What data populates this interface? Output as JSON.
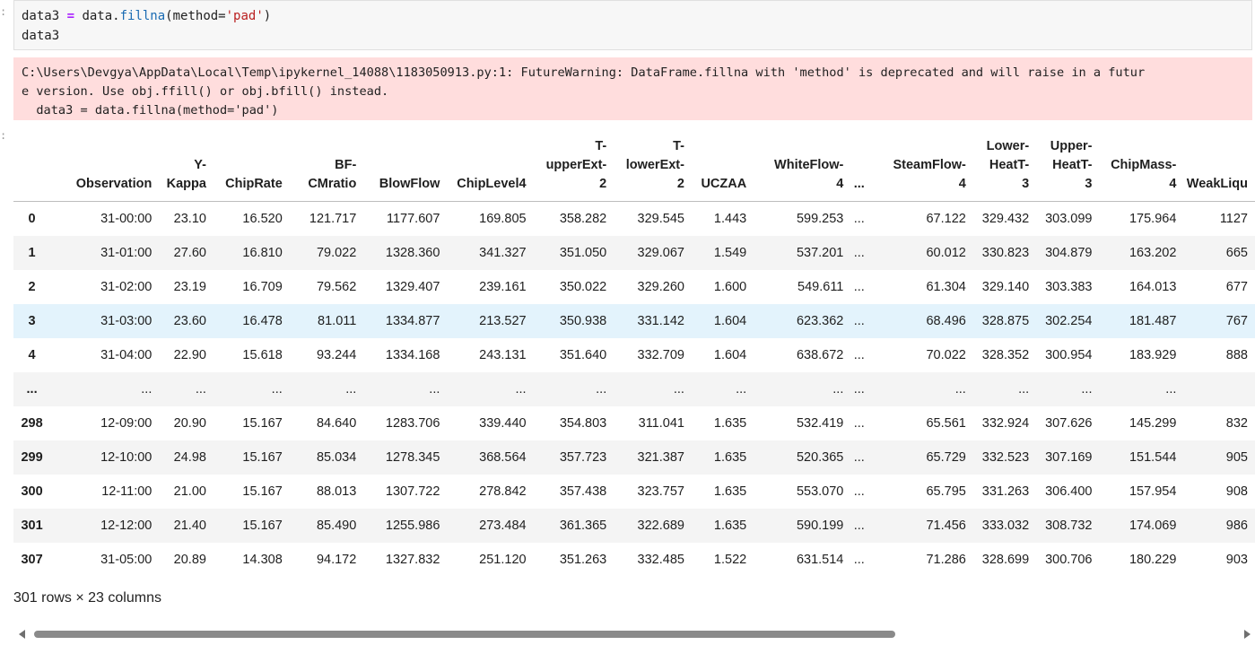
{
  "prompts": {
    "code": ":",
    "output": ":"
  },
  "code": {
    "line1": {
      "var": "data3 ",
      "op": "=",
      "obj": " data.",
      "fn": "fillna",
      "arg_open": "(method=",
      "str": "'pad'",
      "close": ")"
    },
    "line2": "data3"
  },
  "stderr": {
    "line1": "C:\\Users\\Devgya\\AppData\\Local\\Temp\\ipykernel_14088\\1183050913.py:1: FutureWarning: DataFrame.fillna with 'method' is deprecated and will raise in a futur",
    "line2": "e version. Use obj.ffill() or obj.bfill() instead.",
    "line3": "  data3 = data.fillna(method='pad')"
  },
  "table": {
    "columns": [
      {
        "label": "Observation",
        "w": 0
      },
      {
        "label": "Y-\nKappa"
      },
      {
        "label": "ChipRate"
      },
      {
        "label": "BF-\nCMratio"
      },
      {
        "label": "BlowFlow"
      },
      {
        "label": "ChipLevel4"
      },
      {
        "label": "T-\nupperExt-\n2"
      },
      {
        "label": "T-\nlowerExt-\n2"
      },
      {
        "label": "UCZAA"
      },
      {
        "label": "WhiteFlow-\n4"
      },
      {
        "label": "..."
      },
      {
        "label": "SteamFlow-\n4"
      },
      {
        "label": "Lower-\nHeatT-\n3"
      },
      {
        "label": "Upper-\nHeatT-\n3"
      },
      {
        "label": "ChipMass-\n4"
      },
      {
        "label": "WeakLiqu"
      }
    ],
    "rows": [
      {
        "index": "0",
        "cells": [
          "31-00:00",
          "23.10",
          "16.520",
          "121.717",
          "1177.607",
          "169.805",
          "358.282",
          "329.545",
          "1.443",
          "599.253",
          "...",
          "67.122",
          "329.432",
          "303.099",
          "175.964",
          "1127"
        ]
      },
      {
        "index": "1",
        "cells": [
          "31-01:00",
          "27.60",
          "16.810",
          "79.022",
          "1328.360",
          "341.327",
          "351.050",
          "329.067",
          "1.549",
          "537.201",
          "...",
          "60.012",
          "330.823",
          "304.879",
          "163.202",
          "665"
        ]
      },
      {
        "index": "2",
        "cells": [
          "31-02:00",
          "23.19",
          "16.709",
          "79.562",
          "1329.407",
          "239.161",
          "350.022",
          "329.260",
          "1.600",
          "549.611",
          "...",
          "61.304",
          "329.140",
          "303.383",
          "164.013",
          "677"
        ]
      },
      {
        "index": "3",
        "cells": [
          "31-03:00",
          "23.60",
          "16.478",
          "81.011",
          "1334.877",
          "213.527",
          "350.938",
          "331.142",
          "1.604",
          "623.362",
          "...",
          "68.496",
          "328.875",
          "302.254",
          "181.487",
          "767"
        ]
      },
      {
        "index": "4",
        "cells": [
          "31-04:00",
          "22.90",
          "15.618",
          "93.244",
          "1334.168",
          "243.131",
          "351.640",
          "332.709",
          "1.604",
          "638.672",
          "...",
          "70.022",
          "328.352",
          "300.954",
          "183.929",
          "888"
        ]
      },
      {
        "index": "...",
        "cells": [
          "...",
          "...",
          "...",
          "...",
          "...",
          "...",
          "...",
          "...",
          "...",
          "...",
          "...",
          "...",
          "...",
          "...",
          "...",
          ""
        ]
      },
      {
        "index": "298",
        "cells": [
          "12-09:00",
          "20.90",
          "15.167",
          "84.640",
          "1283.706",
          "339.440",
          "354.803",
          "311.041",
          "1.635",
          "532.419",
          "...",
          "65.561",
          "332.924",
          "307.626",
          "145.299",
          "832"
        ]
      },
      {
        "index": "299",
        "cells": [
          "12-10:00",
          "24.98",
          "15.167",
          "85.034",
          "1278.345",
          "368.564",
          "357.723",
          "321.387",
          "1.635",
          "520.365",
          "...",
          "65.729",
          "332.523",
          "307.169",
          "151.544",
          "905"
        ]
      },
      {
        "index": "300",
        "cells": [
          "12-11:00",
          "21.00",
          "15.167",
          "88.013",
          "1307.722",
          "278.842",
          "357.438",
          "323.757",
          "1.635",
          "553.070",
          "...",
          "65.795",
          "331.263",
          "306.400",
          "157.954",
          "908"
        ]
      },
      {
        "index": "301",
        "cells": [
          "12-12:00",
          "21.40",
          "15.167",
          "85.490",
          "1255.986",
          "273.484",
          "361.365",
          "322.689",
          "1.635",
          "590.199",
          "...",
          "71.456",
          "333.032",
          "308.732",
          "174.069",
          "986"
        ]
      },
      {
        "index": "307",
        "cells": [
          "31-05:00",
          "20.89",
          "14.308",
          "94.172",
          "1327.832",
          "251.120",
          "351.263",
          "332.485",
          "1.522",
          "631.514",
          "...",
          "71.286",
          "328.699",
          "300.706",
          "180.229",
          "903"
        ]
      }
    ],
    "highlight_index": "3"
  },
  "footer": "301 rows × 23 columns",
  "colors": {
    "stderr_bg": "#ffdddd",
    "highlight_row": "#e3f3fc",
    "keyword": "#aa22ff",
    "function": "#1a6bb3",
    "string": "#ba2121"
  }
}
